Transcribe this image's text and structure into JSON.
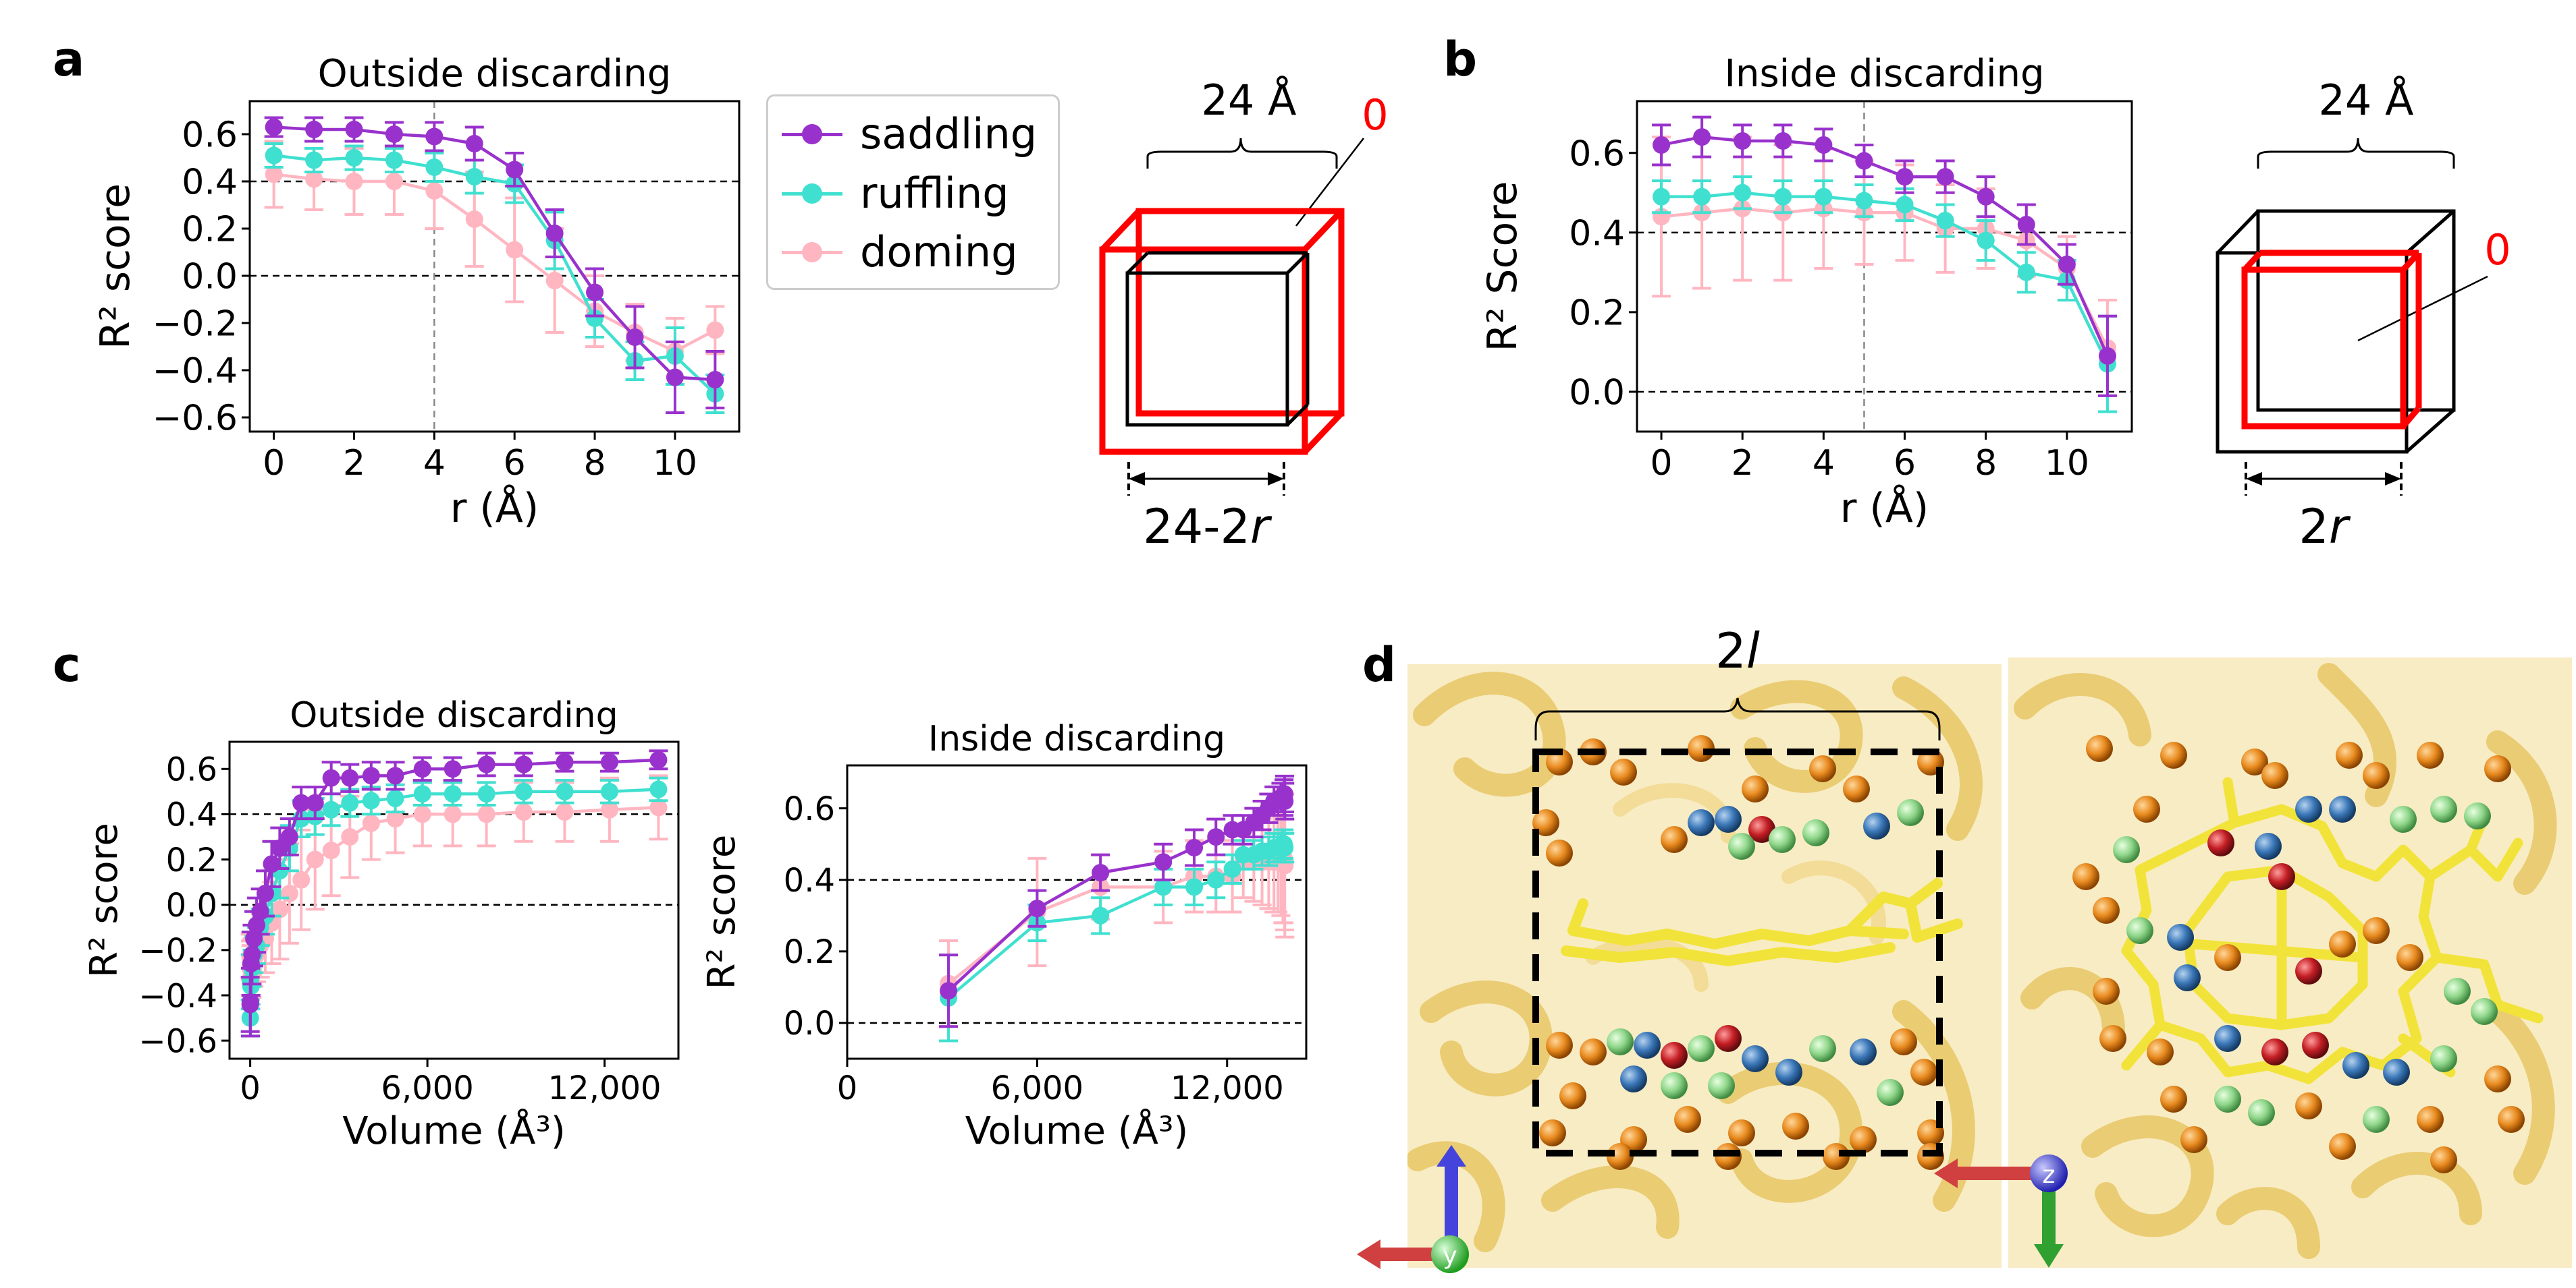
{
  "panel_labels": {
    "a": "a",
    "b": "b",
    "c": "c",
    "d": "d"
  },
  "colors": {
    "saddling": "#9932CC",
    "ruffling": "#40E0D0",
    "doming": "#FFB6C1",
    "highlight": "#FF0000"
  },
  "legend": {
    "saddling": "saddling",
    "ruffling": "ruffling",
    "doming": "doming"
  },
  "cube_a": {
    "dim_top": "24 Å",
    "dim_bottom_prefix": "24-2",
    "dim_bottom_var": "r",
    "zero": "0"
  },
  "cube_b": {
    "dim_top": "24 Å",
    "dim_bottom_prefix": "2",
    "dim_bottom_var": "r",
    "zero": "0"
  },
  "panel_d": {
    "bracket_prefix": "2",
    "bracket_var": "l",
    "axis_y": "y",
    "axis_z": "z"
  },
  "chart_data": [
    {
      "id": "a",
      "type": "line",
      "title": "Outside discarding",
      "ylabel": "R² score",
      "xlabel": "r (Å)",
      "x": [
        0,
        1,
        2,
        3,
        4,
        5,
        6,
        7,
        8,
        9,
        10,
        11
      ],
      "xlim": [
        -0.6,
        11.6
      ],
      "ylim": [
        -0.66,
        0.74
      ],
      "xticks": [
        0,
        2,
        4,
        6,
        8,
        10
      ],
      "xtick_labels": [
        "0",
        "2",
        "4",
        "6",
        "8",
        "10"
      ],
      "yticks": [
        0.6,
        0.4,
        0.2,
        0.0,
        -0.2,
        -0.4,
        -0.6
      ],
      "ytick_labels": [
        "0.6",
        "0.4",
        "0.2",
        "0.0",
        "−0.2",
        "−0.4",
        "−0.6"
      ],
      "hlines": [
        {
          "y": 0.4,
          "style": "dashed"
        },
        {
          "y": 0.0,
          "style": "dashed"
        }
      ],
      "vlines": [
        {
          "x": 4,
          "style": "dashed-gray"
        }
      ],
      "series": [
        {
          "name": "saddling",
          "values": [
            0.63,
            0.62,
            0.62,
            0.6,
            0.59,
            0.56,
            0.45,
            0.18,
            -0.07,
            -0.26,
            -0.43,
            -0.44
          ],
          "errors": [
            0.04,
            0.05,
            0.05,
            0.05,
            0.06,
            0.07,
            0.07,
            0.1,
            0.1,
            0.13,
            0.15,
            0.12
          ]
        },
        {
          "name": "ruffling",
          "values": [
            0.51,
            0.49,
            0.5,
            0.49,
            0.46,
            0.42,
            0.39,
            0.15,
            -0.18,
            -0.36,
            -0.34,
            -0.5
          ],
          "errors": [
            0.05,
            0.05,
            0.05,
            0.05,
            0.06,
            0.07,
            0.08,
            0.12,
            0.08,
            0.08,
            0.12,
            0.08
          ]
        },
        {
          "name": "doming",
          "values": [
            0.43,
            0.41,
            0.4,
            0.4,
            0.36,
            0.24,
            0.11,
            -0.02,
            -0.15,
            -0.24,
            -0.32,
            -0.23
          ],
          "errors": [
            0.14,
            0.13,
            0.14,
            0.14,
            0.16,
            0.2,
            0.22,
            0.22,
            0.15,
            0.12,
            0.14,
            0.1
          ]
        }
      ]
    },
    {
      "id": "b",
      "type": "line",
      "title": "Inside discarding",
      "ylabel": "R² Score",
      "xlabel": "r (Å)",
      "x": [
        0,
        1,
        2,
        3,
        4,
        5,
        6,
        7,
        8,
        9,
        10,
        11
      ],
      "xlim": [
        -0.6,
        11.6
      ],
      "ylim": [
        -0.1,
        0.73
      ],
      "xticks": [
        0,
        2,
        4,
        6,
        8,
        10
      ],
      "xtick_labels": [
        "0",
        "2",
        "4",
        "6",
        "8",
        "10"
      ],
      "yticks": [
        0.6,
        0.4,
        0.2,
        0.0
      ],
      "ytick_labels": [
        "0.6",
        "0.4",
        "0.2",
        "0.0"
      ],
      "hlines": [
        {
          "y": 0.4,
          "style": "dashed"
        },
        {
          "y": 0.0,
          "style": "dashed"
        }
      ],
      "vlines": [
        {
          "x": 5,
          "style": "dashed-gray"
        }
      ],
      "series": [
        {
          "name": "saddling",
          "values": [
            0.62,
            0.64,
            0.63,
            0.63,
            0.62,
            0.58,
            0.54,
            0.54,
            0.49,
            0.42,
            0.32,
            0.09
          ],
          "errors": [
            0.05,
            0.05,
            0.04,
            0.04,
            0.04,
            0.04,
            0.04,
            0.04,
            0.05,
            0.05,
            0.05,
            0.1
          ]
        },
        {
          "name": "ruffling",
          "values": [
            0.49,
            0.49,
            0.5,
            0.49,
            0.49,
            0.48,
            0.47,
            0.43,
            0.38,
            0.3,
            0.28,
            0.07
          ],
          "errors": [
            0.04,
            0.04,
            0.04,
            0.04,
            0.04,
            0.04,
            0.04,
            0.04,
            0.05,
            0.05,
            0.05,
            0.12
          ]
        },
        {
          "name": "doming",
          "values": [
            0.44,
            0.45,
            0.46,
            0.45,
            0.46,
            0.45,
            0.45,
            0.41,
            0.41,
            0.38,
            0.31,
            0.11
          ],
          "errors": [
            0.2,
            0.19,
            0.18,
            0.17,
            0.15,
            0.13,
            0.12,
            0.11,
            0.1,
            0.09,
            0.08,
            0.12
          ]
        }
      ]
    },
    {
      "id": "c-left",
      "type": "line",
      "title": "Outside discarding",
      "ylabel": "R² score",
      "xlabel": "Volume (Å³)",
      "x": [
        13824,
        12167,
        10648,
        9261,
        8000,
        6859,
        5832,
        4913,
        4096,
        3375,
        2744,
        2197,
        1728,
        1331,
        1000,
        729,
        512,
        343,
        216,
        125,
        64,
        27,
        8,
        1
      ],
      "xlim": [
        -700,
        14500
      ],
      "ylim": [
        -0.68,
        0.72
      ],
      "xticks": [
        0,
        6000,
        12000
      ],
      "xtick_labels": [
        "0",
        "6,000",
        "12,000"
      ],
      "yticks": [
        0.6,
        0.4,
        0.2,
        0.0,
        -0.2,
        -0.4,
        -0.6
      ],
      "ytick_labels": [
        "0.6",
        "0.4",
        "0.2",
        "0.0",
        "−0.2",
        "−0.4",
        "−0.6"
      ],
      "hlines": [
        {
          "y": 0.4,
          "style": "dashed"
        },
        {
          "y": 0.0,
          "style": "dashed"
        }
      ],
      "vlines": [],
      "series": [
        {
          "name": "saddling",
          "values": [
            0.64,
            0.63,
            0.63,
            0.62,
            0.62,
            0.6,
            0.6,
            0.57,
            0.57,
            0.56,
            0.56,
            0.45,
            0.45,
            0.3,
            0.25,
            0.18,
            0.05,
            -0.03,
            -0.09,
            -0.15,
            -0.22,
            -0.26,
            -0.43,
            -0.44
          ],
          "errors": [
            0.04,
            0.04,
            0.04,
            0.05,
            0.05,
            0.05,
            0.05,
            0.06,
            0.06,
            0.06,
            0.07,
            0.07,
            0.07,
            0.08,
            0.09,
            0.1,
            0.1,
            0.1,
            0.12,
            0.12,
            0.13,
            0.14,
            0.15,
            0.12
          ]
        },
        {
          "name": "ruffling",
          "values": [
            0.51,
            0.5,
            0.5,
            0.5,
            0.49,
            0.49,
            0.49,
            0.47,
            0.46,
            0.45,
            0.42,
            0.39,
            0.38,
            0.25,
            0.15,
            0.05,
            -0.05,
            -0.1,
            -0.18,
            -0.22,
            -0.28,
            -0.36,
            -0.34,
            -0.5
          ],
          "errors": [
            0.05,
            0.05,
            0.05,
            0.05,
            0.05,
            0.05,
            0.05,
            0.06,
            0.06,
            0.06,
            0.07,
            0.08,
            0.08,
            0.1,
            0.12,
            0.1,
            0.08,
            0.08,
            0.08,
            0.08,
            0.08,
            0.08,
            0.12,
            0.08
          ]
        },
        {
          "name": "doming",
          "values": [
            0.43,
            0.42,
            0.41,
            0.41,
            0.4,
            0.4,
            0.4,
            0.38,
            0.36,
            0.3,
            0.24,
            0.2,
            0.11,
            0.05,
            -0.02,
            -0.08,
            -0.15,
            -0.18,
            -0.22,
            -0.24,
            -0.28,
            -0.32,
            -0.28,
            -0.23
          ],
          "errors": [
            0.14,
            0.14,
            0.13,
            0.13,
            0.14,
            0.14,
            0.14,
            0.15,
            0.16,
            0.18,
            0.2,
            0.22,
            0.22,
            0.22,
            0.22,
            0.18,
            0.15,
            0.14,
            0.12,
            0.12,
            0.13,
            0.14,
            0.12,
            0.1
          ]
        }
      ]
    },
    {
      "id": "c-right",
      "type": "line",
      "title": "Inside discarding",
      "ylabel": "R² score",
      "xlabel": "Volume (Å³)",
      "x": [
        13823,
        13817,
        13799,
        13761,
        13699,
        13607,
        13481,
        13315,
        13105,
        12845,
        12511,
        12167,
        11648,
        10961,
        9984,
        8000,
        6000,
        3200
      ],
      "xlim": [
        0,
        14500
      ],
      "ylim": [
        -0.1,
        0.72
      ],
      "xticks": [
        0,
        6000,
        12000
      ],
      "xtick_labels": [
        "0",
        "6,000",
        "12,000"
      ],
      "yticks": [
        0.6,
        0.4,
        0.2,
        0.0
      ],
      "ytick_labels": [
        "0.6",
        "0.4",
        "0.2",
        "0.0"
      ],
      "hlines": [
        {
          "y": 0.4,
          "style": "dashed"
        },
        {
          "y": 0.0,
          "style": "dashed"
        }
      ],
      "vlines": [],
      "series": [
        {
          "name": "saddling",
          "values": [
            0.62,
            0.64,
            0.63,
            0.63,
            0.63,
            0.62,
            0.62,
            0.6,
            0.58,
            0.56,
            0.54,
            0.54,
            0.52,
            0.49,
            0.45,
            0.42,
            0.32,
            0.09
          ],
          "errors": [
            0.05,
            0.05,
            0.05,
            0.04,
            0.04,
            0.04,
            0.04,
            0.04,
            0.04,
            0.04,
            0.04,
            0.04,
            0.05,
            0.05,
            0.05,
            0.05,
            0.05,
            0.1
          ]
        },
        {
          "name": "ruffling",
          "values": [
            0.49,
            0.49,
            0.5,
            0.5,
            0.49,
            0.49,
            0.49,
            0.48,
            0.48,
            0.47,
            0.47,
            0.43,
            0.4,
            0.38,
            0.38,
            0.3,
            0.28,
            0.07
          ],
          "errors": [
            0.04,
            0.04,
            0.04,
            0.04,
            0.04,
            0.04,
            0.04,
            0.04,
            0.04,
            0.04,
            0.04,
            0.04,
            0.05,
            0.05,
            0.05,
            0.05,
            0.05,
            0.12
          ]
        },
        {
          "name": "doming",
          "values": [
            0.44,
            0.45,
            0.46,
            0.45,
            0.46,
            0.46,
            0.45,
            0.45,
            0.45,
            0.45,
            0.45,
            0.41,
            0.41,
            0.41,
            0.38,
            0.38,
            0.31,
            0.11
          ],
          "errors": [
            0.2,
            0.19,
            0.18,
            0.17,
            0.16,
            0.15,
            0.14,
            0.13,
            0.12,
            0.11,
            0.1,
            0.1,
            0.1,
            0.1,
            0.1,
            0.09,
            0.15,
            0.12
          ]
        }
      ]
    }
  ]
}
